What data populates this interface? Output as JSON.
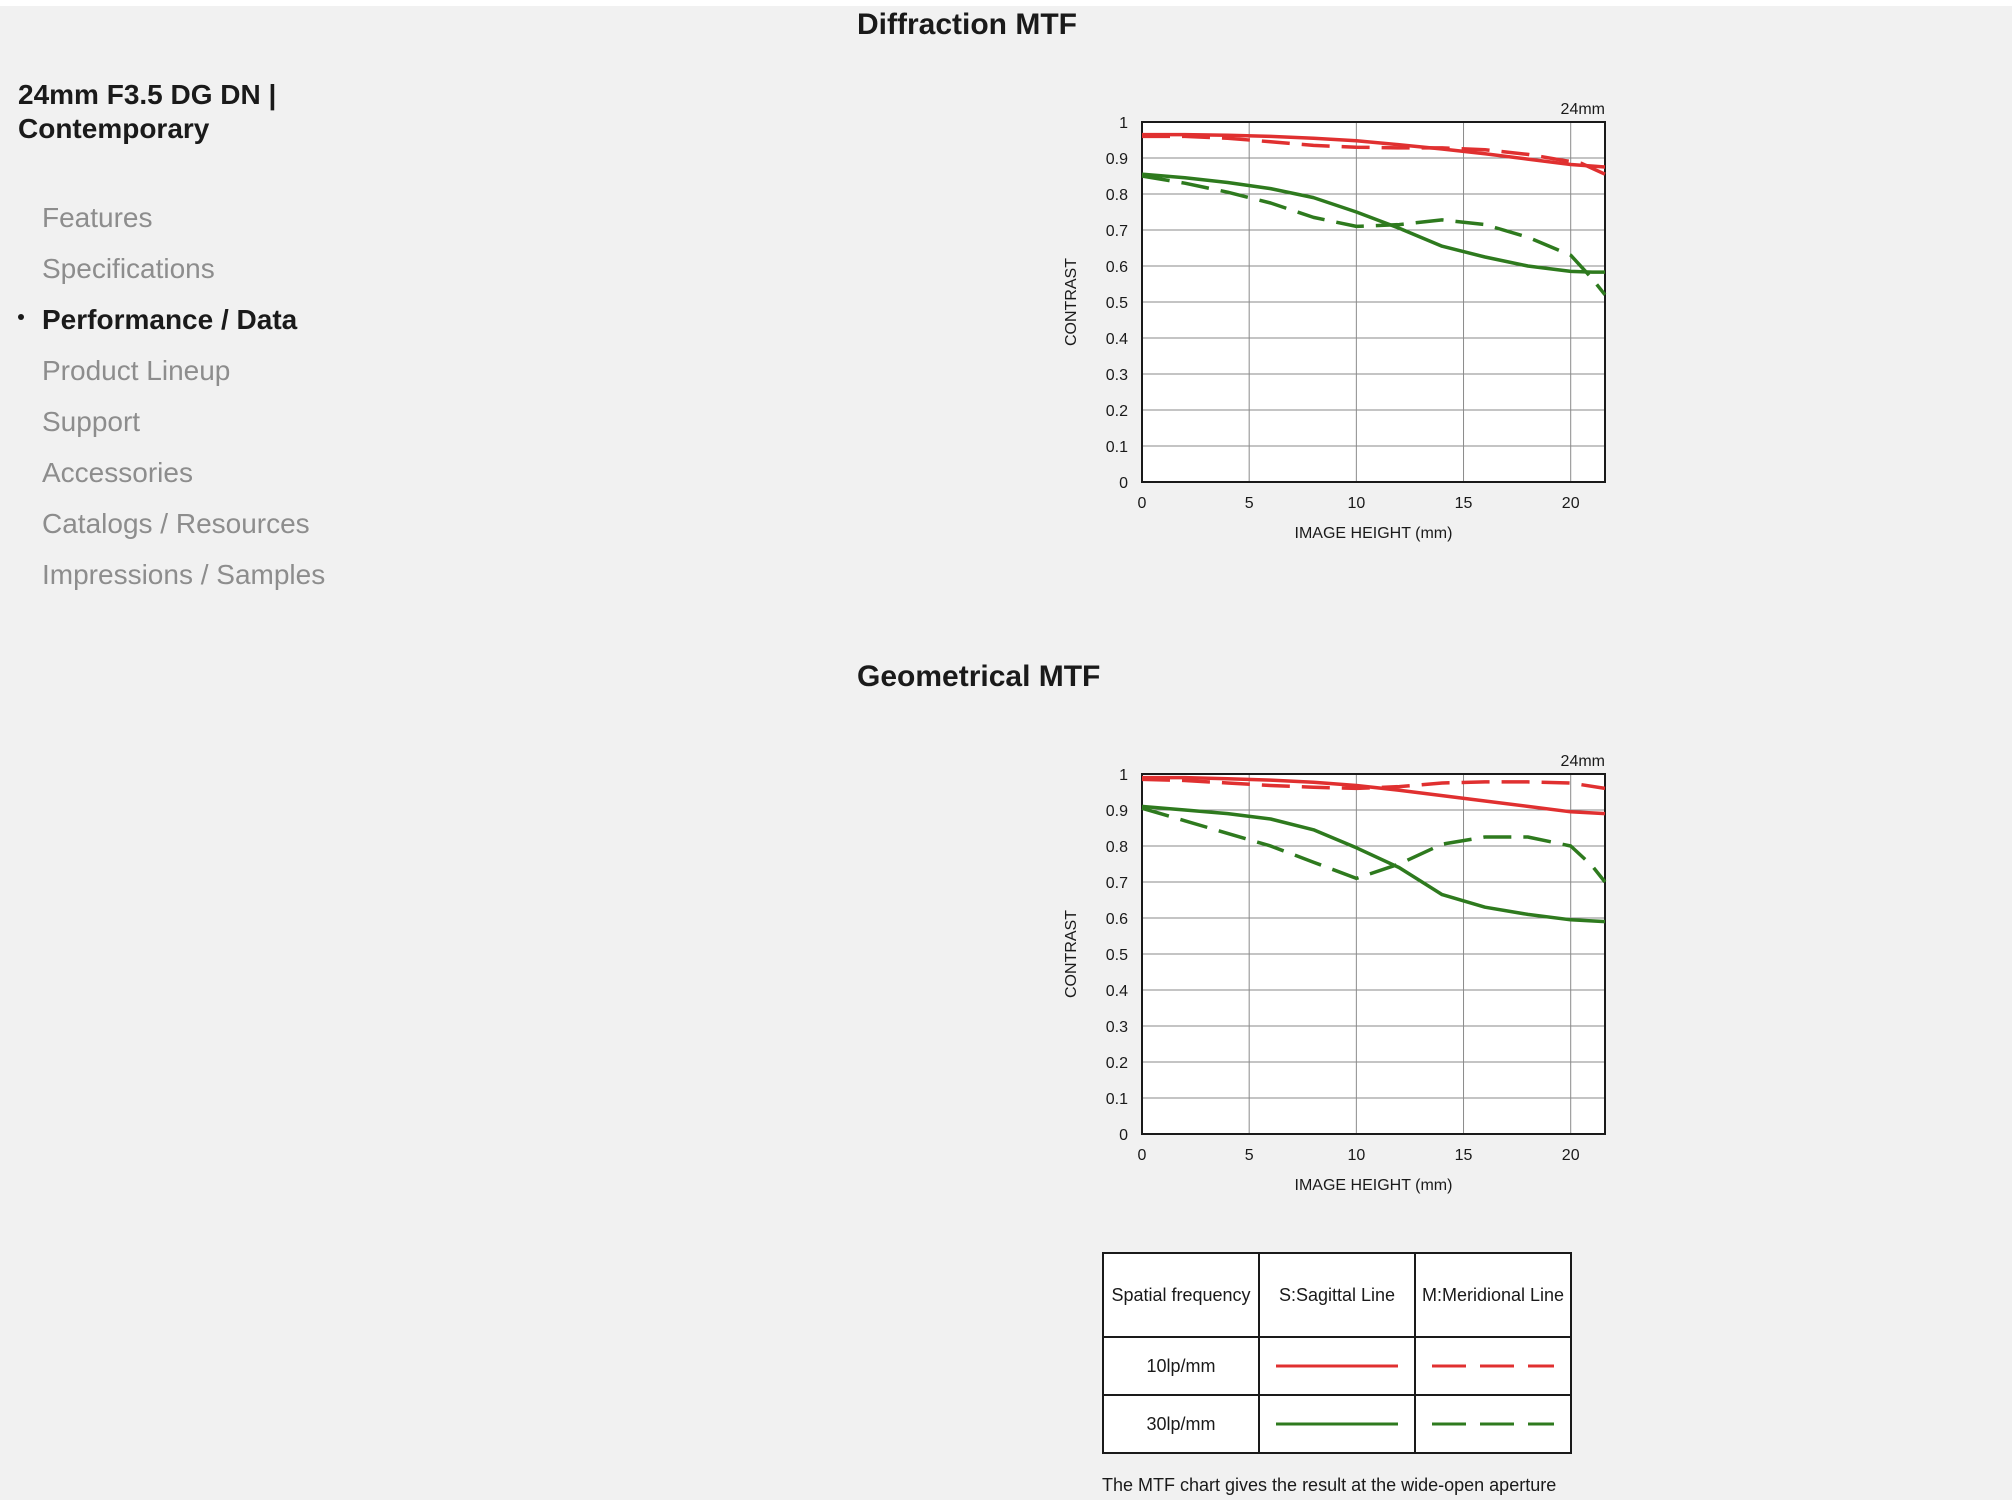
{
  "product_title": "24mm F3.5 DG DN | Contemporary",
  "nav": {
    "items": [
      {
        "label": "Features",
        "active": false
      },
      {
        "label": "Specifications",
        "active": false
      },
      {
        "label": "Performance / Data",
        "active": true
      },
      {
        "label": "Product Lineup",
        "active": false
      },
      {
        "label": "Support",
        "active": false
      },
      {
        "label": "Accessories",
        "active": false
      },
      {
        "label": "Catalogs / Resources",
        "active": false
      },
      {
        "label": "Impressions / Samples",
        "active": false
      }
    ]
  },
  "sections": {
    "diffraction": {
      "title": "Diffraction MTF"
    },
    "geometrical": {
      "title": "Geometrical MTF"
    }
  },
  "colors": {
    "line_10": "#e03030",
    "line_30": "#2e7a1e",
    "grid": "#8a8a8a"
  },
  "chart_data": [
    {
      "type": "line",
      "title": "",
      "corner_label": "24mm",
      "xlabel": "IMAGE HEIGHT (mm)",
      "ylabel": "CONTRAST",
      "xlim": [
        0,
        21.6
      ],
      "ylim": [
        0,
        1
      ],
      "xticks": [
        0,
        5,
        10,
        15,
        20
      ],
      "yticks": [
        0,
        0.1,
        0.2,
        0.3,
        0.4,
        0.5,
        0.6,
        0.7,
        0.8,
        0.9,
        1
      ],
      "ytick_labels": [
        "0",
        "0.1",
        "0.2",
        "0.3",
        "0.4",
        "0.5",
        "0.6",
        "0.7",
        "0.8",
        "0.9",
        "1"
      ],
      "grid": true,
      "series": [
        {
          "freq": "10lp/mm",
          "line": "sagittal",
          "x": [
            0,
            2,
            4,
            6,
            8,
            10,
            12,
            14,
            16,
            18,
            20,
            21.6
          ],
          "values": [
            0.965,
            0.965,
            0.963,
            0.96,
            0.955,
            0.948,
            0.937,
            0.925,
            0.912,
            0.897,
            0.882,
            0.875
          ]
        },
        {
          "freq": "10lp/mm",
          "line": "meridional",
          "x": [
            0,
            2,
            4,
            6,
            8,
            10,
            12,
            14,
            16,
            18,
            19.5,
            20.5,
            21.6
          ],
          "values": [
            0.96,
            0.96,
            0.955,
            0.945,
            0.935,
            0.93,
            0.928,
            0.928,
            0.923,
            0.91,
            0.895,
            0.885,
            0.855
          ]
        },
        {
          "freq": "30lp/mm",
          "line": "sagittal",
          "x": [
            0,
            2,
            4,
            6,
            8,
            10,
            12,
            14,
            16,
            18,
            20,
            21,
            21.6
          ],
          "values": [
            0.855,
            0.845,
            0.832,
            0.815,
            0.79,
            0.75,
            0.705,
            0.655,
            0.625,
            0.6,
            0.585,
            0.583,
            0.583
          ]
        },
        {
          "freq": "30lp/mm",
          "line": "meridional",
          "x": [
            0,
            2,
            4,
            6,
            8,
            10,
            12,
            14,
            16,
            18,
            20,
            21,
            21.6
          ],
          "values": [
            0.85,
            0.83,
            0.805,
            0.775,
            0.735,
            0.71,
            0.715,
            0.728,
            0.715,
            0.68,
            0.63,
            0.565,
            0.52
          ]
        }
      ]
    },
    {
      "type": "line",
      "title": "",
      "corner_label": "24mm",
      "xlabel": "IMAGE HEIGHT (mm)",
      "ylabel": "CONTRAST",
      "xlim": [
        0,
        21.6
      ],
      "ylim": [
        0,
        1
      ],
      "xticks": [
        0,
        5,
        10,
        15,
        20
      ],
      "yticks": [
        0,
        0.1,
        0.2,
        0.3,
        0.4,
        0.5,
        0.6,
        0.7,
        0.8,
        0.9,
        1
      ],
      "ytick_labels": [
        "0",
        "0.1",
        "0.2",
        "0.3",
        "0.4",
        "0.5",
        "0.6",
        "0.7",
        "0.8",
        "0.9",
        "1"
      ],
      "grid": true,
      "series": [
        {
          "freq": "10lp/mm",
          "line": "sagittal",
          "x": [
            0,
            2,
            4,
            6,
            8,
            10,
            12,
            14,
            16,
            18,
            20,
            21.6
          ],
          "values": [
            0.99,
            0.99,
            0.987,
            0.983,
            0.977,
            0.968,
            0.955,
            0.94,
            0.925,
            0.91,
            0.895,
            0.89
          ]
        },
        {
          "freq": "10lp/mm",
          "line": "meridional",
          "x": [
            0,
            2,
            4,
            6,
            8,
            10,
            12,
            14,
            16,
            18,
            20,
            21.6
          ],
          "values": [
            0.985,
            0.982,
            0.975,
            0.968,
            0.963,
            0.96,
            0.965,
            0.975,
            0.978,
            0.978,
            0.975,
            0.96
          ]
        },
        {
          "freq": "30lp/mm",
          "line": "sagittal",
          "x": [
            0,
            2,
            4,
            6,
            8,
            10,
            12,
            14,
            16,
            18,
            20,
            21.6
          ],
          "values": [
            0.91,
            0.9,
            0.89,
            0.875,
            0.845,
            0.795,
            0.74,
            0.665,
            0.63,
            0.61,
            0.595,
            0.59
          ]
        },
        {
          "freq": "30lp/mm",
          "line": "meridional",
          "x": [
            0,
            2,
            4,
            6,
            8,
            10,
            12,
            14,
            16,
            18,
            20,
            21,
            21.6
          ],
          "values": [
            0.905,
            0.87,
            0.835,
            0.8,
            0.755,
            0.71,
            0.75,
            0.805,
            0.825,
            0.825,
            0.8,
            0.745,
            0.7
          ]
        }
      ]
    }
  ],
  "legend": {
    "headers": [
      "Spatial frequency",
      "S:Sagittal Line",
      "M:Meridional Line"
    ],
    "rows": [
      {
        "label": "10lp/mm"
      },
      {
        "label": "30lp/mm"
      }
    ]
  },
  "note": "The MTF chart gives the result at the wide-open aperture"
}
